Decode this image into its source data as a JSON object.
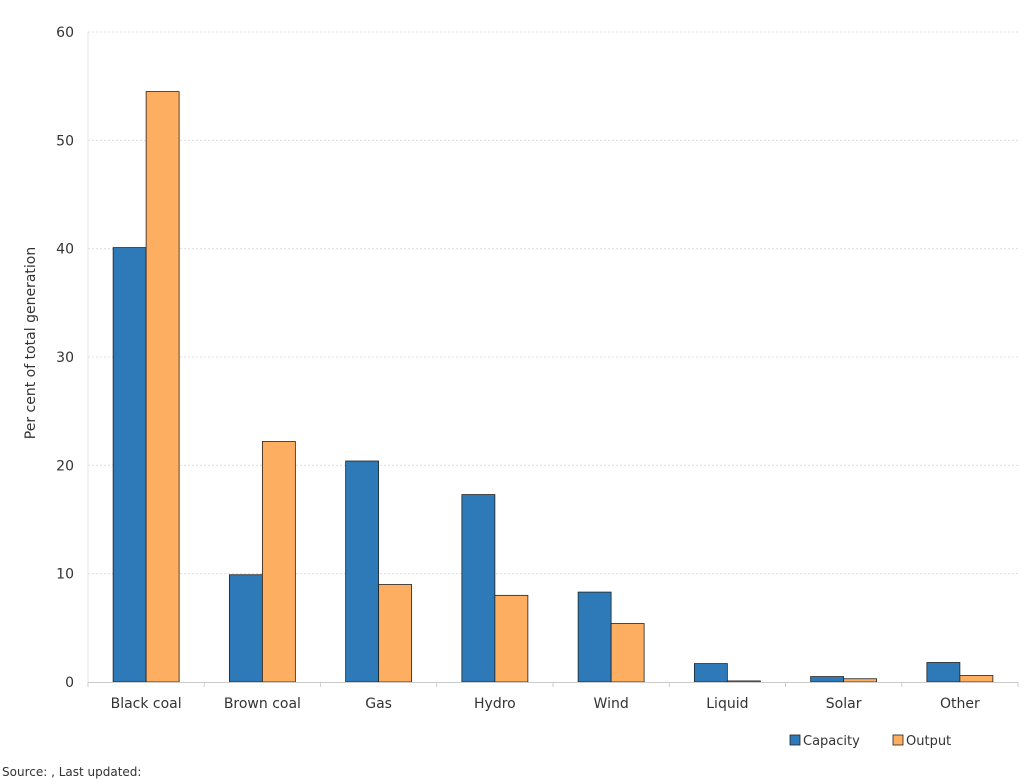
{
  "chart_data": {
    "type": "bar",
    "title": "",
    "xlabel": "",
    "ylabel": "Per cent of total generation",
    "ylim": [
      0,
      60
    ],
    "yticks": [
      0,
      10,
      20,
      30,
      40,
      50,
      60
    ],
    "grid": true,
    "legend_position": "bottom-right",
    "categories": [
      "Black coal",
      "Brown coal",
      "Gas",
      "Hydro",
      "Wind",
      "Liquid",
      "Solar",
      "Other"
    ],
    "series": [
      {
        "name": "Capacity",
        "color": "#2e7ab8",
        "values": [
          40.1,
          9.9,
          20.4,
          17.3,
          8.3,
          1.7,
          0.5,
          1.8
        ]
      },
      {
        "name": "Output",
        "color": "#fdae61",
        "values": [
          54.5,
          22.2,
          9.0,
          8.0,
          5.4,
          0.1,
          0.3,
          0.6
        ]
      }
    ]
  },
  "source_text": "Source: , Last updated:"
}
